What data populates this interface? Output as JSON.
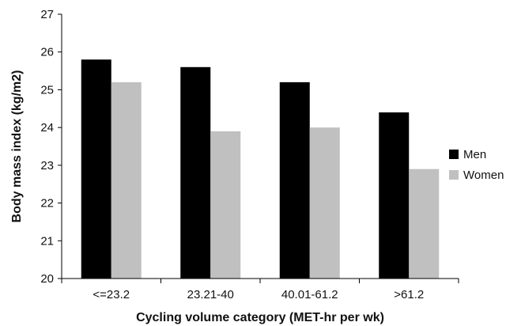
{
  "chart_data": {
    "type": "bar",
    "title": "",
    "xlabel": "Cycling volume category (MET-hr per wk)",
    "ylabel": "Body mass index (kg/m2)",
    "categories": [
      "<=23.2",
      "23.21-40",
      "40.01-61.2",
      ">61.2"
    ],
    "ylim": [
      20,
      27
    ],
    "yticks": [
      20,
      21,
      22,
      23,
      24,
      25,
      26,
      27
    ],
    "grid": false,
    "legend_position": "right",
    "series": [
      {
        "name": "Men",
        "color": "#000000",
        "values": [
          25.8,
          25.6,
          25.2,
          24.4
        ]
      },
      {
        "name": "Women",
        "color": "#c0c0c0",
        "values": [
          25.2,
          23.9,
          24.0,
          22.9
        ]
      }
    ]
  }
}
